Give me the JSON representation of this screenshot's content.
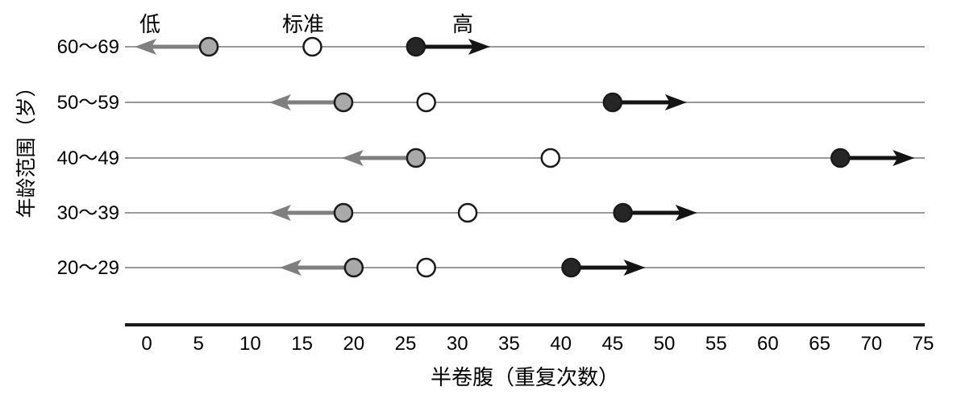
{
  "chart_data": {
    "type": "scatter",
    "title": "",
    "xlabel": "半卷腹（重复次数）",
    "ylabel": "年龄范围（岁）",
    "xlim": [
      0,
      75
    ],
    "xticks": [
      0,
      5,
      10,
      15,
      20,
      25,
      30,
      35,
      40,
      45,
      50,
      55,
      60,
      65,
      70,
      75
    ],
    "grid": false,
    "legend_position": "top",
    "legend": {
      "low": "低",
      "standard": "标准",
      "high": "高"
    },
    "categories": [
      "60～69",
      "50～59",
      "40～49",
      "30～39",
      "20～29"
    ],
    "series": [
      {
        "name": "低",
        "marker": "filled-gray-circle",
        "arrow_direction": "left",
        "values": [
          6,
          19,
          26,
          19,
          20
        ]
      },
      {
        "name": "标准",
        "marker": "open-circle",
        "arrow_direction": "none",
        "values": [
          16,
          27,
          39,
          31,
          27
        ]
      },
      {
        "name": "高",
        "marker": "filled-dark-circle",
        "arrow_direction": "right",
        "values": [
          26,
          45,
          67,
          46,
          41
        ]
      }
    ],
    "colors": {
      "low_marker": "#a9a9a9",
      "standard_marker": "#ffffff",
      "high_marker": "#262626",
      "low_arrow": "#7f7f7f",
      "high_arrow": "#141414",
      "row_line": "#999999",
      "axis_line": "#1a1a1a",
      "marker_stroke": "#1a1a1a",
      "text": "#000000"
    }
  }
}
